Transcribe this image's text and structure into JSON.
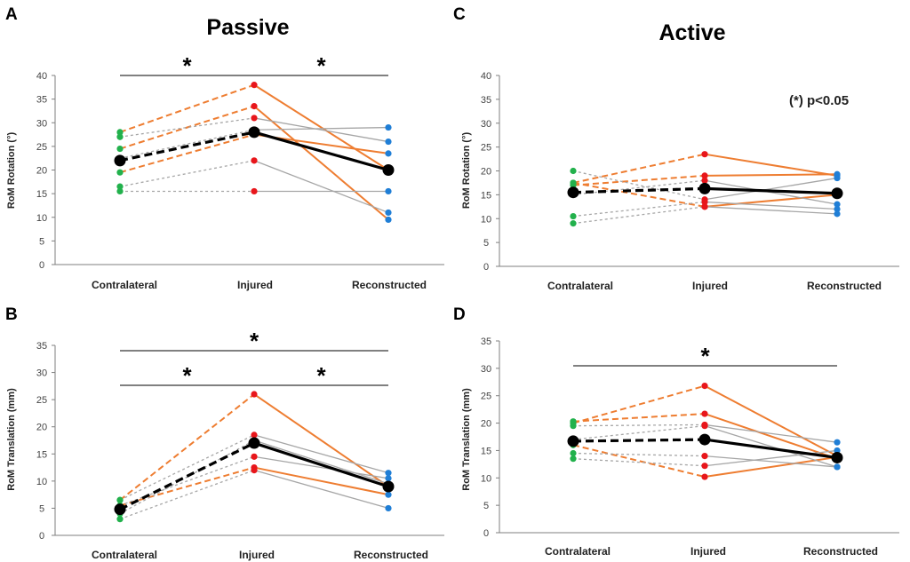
{
  "colors": {
    "contralateral": "#22b14c",
    "injured": "#e8161b",
    "reconstructed": "#1f7ed6",
    "orange": "#ee7d31",
    "gray": "#a6a6a6",
    "mean": "#000000",
    "axis": "#7f7f7f"
  },
  "titles": {
    "passive": "Passive",
    "active": "Active"
  },
  "annotation": "(*) p<0.05",
  "chart_data": [
    {
      "panel": "A",
      "type": "line",
      "title": "Passive",
      "ylabel": "RoM Rotation (°)",
      "categories": [
        "Contralateral",
        "Injured",
        "Reconstructed"
      ],
      "ylim": [
        0,
        40
      ],
      "yticks": [
        0,
        5,
        10,
        15,
        20,
        25,
        30,
        35,
        40
      ],
      "mean": [
        22,
        28,
        20
      ],
      "series": [
        {
          "values": [
            28,
            38,
            20
          ],
          "color": "orange"
        },
        {
          "values": [
            24.5,
            33.5,
            9.5
          ],
          "color": "orange"
        },
        {
          "values": [
            19.5,
            27.5,
            23.5
          ],
          "color": "orange"
        },
        {
          "values": [
            27,
            31,
            26
          ],
          "color": "gray"
        },
        {
          "values": [
            22.5,
            28.5,
            29
          ],
          "color": "gray"
        },
        {
          "values": [
            16.5,
            22,
            11
          ],
          "color": "gray"
        },
        {
          "values": [
            15.5,
            15.5,
            15.5
          ],
          "color": "gray"
        }
      ],
      "significance": [
        {
          "from": 0,
          "to": 1,
          "label": "*",
          "level": 1
        },
        {
          "from": 1,
          "to": 2,
          "label": "*",
          "level": 1
        }
      ]
    },
    {
      "panel": "B",
      "type": "line",
      "title": "",
      "ylabel": "RoM Translation (mm)",
      "categories": [
        "Contralateral",
        "Injured",
        "Reconstructed"
      ],
      "ylim": [
        0,
        35
      ],
      "yticks": [
        0,
        5,
        10,
        15,
        20,
        25,
        30,
        35
      ],
      "mean": [
        4.8,
        17,
        9
      ],
      "series": [
        {
          "values": [
            6.5,
            26,
            9
          ],
          "color": "orange"
        },
        {
          "values": [
            5.5,
            12.5,
            7.5
          ],
          "color": "orange"
        },
        {
          "values": [
            6.5,
            18.5,
            11.5
          ],
          "color": "gray"
        },
        {
          "values": [
            5.5,
            14.5,
            10.5
          ],
          "color": "gray"
        },
        {
          "values": [
            4,
            17.5,
            9.5
          ],
          "color": "gray"
        },
        {
          "values": [
            3,
            12,
            5
          ],
          "color": "gray"
        }
      ],
      "significance": [
        {
          "from": 0,
          "to": 1,
          "label": "*",
          "level": 1
        },
        {
          "from": 1,
          "to": 2,
          "label": "*",
          "level": 1
        },
        {
          "from": 0,
          "to": 2,
          "label": "*",
          "level": 2
        }
      ]
    },
    {
      "panel": "C",
      "type": "line",
      "title": "Active",
      "ylabel": "RoM Rotation (°)",
      "categories": [
        "Contralateral",
        "Injured",
        "Reconstructed"
      ],
      "ylim": [
        0,
        40
      ],
      "yticks": [
        0,
        5,
        10,
        15,
        20,
        25,
        30,
        35,
        40
      ],
      "mean": [
        15.5,
        16.3,
        15.3
      ],
      "series": [
        {
          "values": [
            17.5,
            23.5,
            19
          ],
          "color": "orange"
        },
        {
          "values": [
            17,
            19,
            19.3
          ],
          "color": "orange"
        },
        {
          "values": [
            17.5,
            12.5,
            15
          ],
          "color": "orange"
        },
        {
          "values": [
            20,
            14,
            18.5
          ],
          "color": "gray"
        },
        {
          "values": [
            15,
            18,
            13
          ],
          "color": "gray"
        },
        {
          "values": [
            10.5,
            13.5,
            12
          ],
          "color": "gray"
        },
        {
          "values": [
            9,
            12.5,
            11
          ],
          "color": "gray"
        }
      ],
      "significance": []
    },
    {
      "panel": "D",
      "type": "line",
      "title": "",
      "ylabel": "RoM Translation (mm)",
      "categories": [
        "Contralateral",
        "Injured",
        "Reconstructed"
      ],
      "ylim": [
        0,
        35
      ],
      "yticks": [
        0,
        5,
        10,
        15,
        20,
        25,
        30,
        35
      ],
      "mean": [
        16.7,
        17,
        13.7
      ],
      "series": [
        {
          "values": [
            20,
            26.8,
            14
          ],
          "color": "orange"
        },
        {
          "values": [
            20.3,
            21.7,
            13.5
          ],
          "color": "orange"
        },
        {
          "values": [
            16,
            10.2,
            13.8
          ],
          "color": "orange"
        },
        {
          "values": [
            19.5,
            19.7,
            16.5
          ],
          "color": "gray"
        },
        {
          "values": [
            14.5,
            14,
            12
          ],
          "color": "gray"
        },
        {
          "values": [
            13.5,
            12.2,
            15
          ],
          "color": "gray"
        },
        {
          "values": [
            17,
            19.5,
            12
          ],
          "color": "gray"
        }
      ],
      "significance": [
        {
          "from": 0,
          "to": 2,
          "label": "*",
          "level": 1
        }
      ]
    }
  ]
}
